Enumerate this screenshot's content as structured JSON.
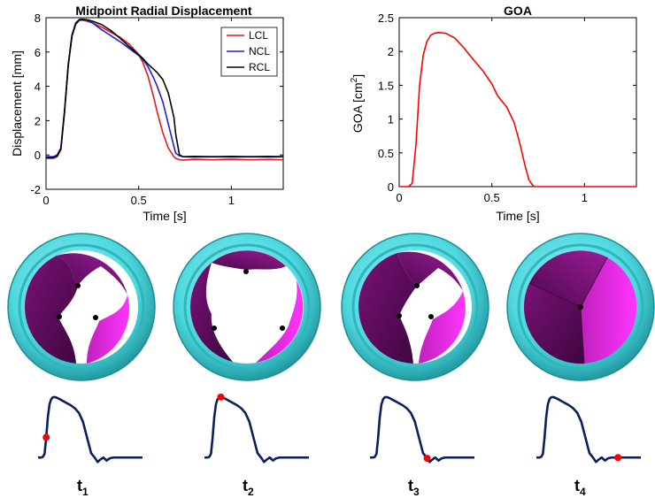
{
  "chart_data": [
    {
      "type": "line",
      "title": "Midpoint Radial Displacement",
      "xlabel": "Time [s]",
      "ylabel": "Displacement [mm]",
      "xlim": [
        0,
        1.28
      ],
      "ylim": [
        -2,
        8
      ],
      "xticks": [
        0,
        0.5,
        1
      ],
      "xtick_labels": [
        "0",
        "0.5",
        "1"
      ],
      "yticks": [
        -2,
        0,
        2,
        4,
        6,
        8
      ],
      "ytick_labels": [
        "-2",
        "0",
        "2",
        "4",
        "6",
        "8"
      ],
      "legend": {
        "placement": "top-right",
        "entries": [
          "LCL",
          "NCL",
          "RCL"
        ]
      },
      "series": [
        {
          "name": "LCL",
          "color": "#e41a1c",
          "x": [
            0,
            0.04,
            0.06,
            0.08,
            0.1,
            0.12,
            0.14,
            0.16,
            0.18,
            0.2,
            0.22,
            0.25,
            0.3,
            0.35,
            0.4,
            0.45,
            0.5,
            0.52,
            0.55,
            0.58,
            0.6,
            0.63,
            0.66,
            0.69,
            0.7,
            0.72,
            0.74,
            0.8,
            0.9,
            1.0,
            1.1,
            1.2,
            1.28
          ],
          "y": [
            -0.2,
            -0.2,
            -0.1,
            0.3,
            2.5,
            5.2,
            6.9,
            7.6,
            7.85,
            7.85,
            7.8,
            7.7,
            7.45,
            7.15,
            6.85,
            6.45,
            5.85,
            5.45,
            4.6,
            3.4,
            2.5,
            1.3,
            0.4,
            -0.1,
            -0.2,
            -0.28,
            -0.3,
            -0.25,
            -0.28,
            -0.25,
            -0.28,
            -0.26,
            -0.28
          ]
        },
        {
          "name": "NCL",
          "color": "#1f1fdc",
          "x": [
            0,
            0.04,
            0.06,
            0.08,
            0.1,
            0.12,
            0.14,
            0.16,
            0.18,
            0.2,
            0.22,
            0.25,
            0.3,
            0.35,
            0.4,
            0.45,
            0.5,
            0.52,
            0.55,
            0.58,
            0.6,
            0.63,
            0.66,
            0.69,
            0.7,
            0.72,
            0.74,
            0.8,
            0.9,
            1.0,
            1.1,
            1.2,
            1.28
          ],
          "y": [
            -0.1,
            -0.1,
            0.0,
            0.4,
            2.6,
            5.3,
            7.0,
            7.7,
            7.9,
            7.9,
            7.85,
            7.7,
            7.3,
            6.95,
            6.6,
            6.2,
            5.8,
            5.6,
            5.15,
            4.5,
            4.0,
            3.1,
            1.8,
            0.5,
            0.1,
            -0.05,
            -0.1,
            -0.12,
            -0.1,
            -0.12,
            -0.1,
            -0.12,
            -0.1
          ]
        },
        {
          "name": "RCL",
          "color": "#000000",
          "x": [
            0,
            0.04,
            0.06,
            0.08,
            0.1,
            0.12,
            0.14,
            0.16,
            0.18,
            0.2,
            0.22,
            0.25,
            0.3,
            0.35,
            0.4,
            0.45,
            0.5,
            0.52,
            0.55,
            0.58,
            0.6,
            0.63,
            0.66,
            0.69,
            0.7,
            0.72,
            0.74,
            0.8,
            0.9,
            1.0,
            1.1,
            1.2,
            1.28
          ],
          "y": [
            -0.15,
            -0.15,
            -0.05,
            0.35,
            2.55,
            5.25,
            6.95,
            7.65,
            7.88,
            7.9,
            7.88,
            7.8,
            7.6,
            7.25,
            6.8,
            6.3,
            5.85,
            5.65,
            5.3,
            5.0,
            4.8,
            4.4,
            3.6,
            2.2,
            1.2,
            0.0,
            -0.1,
            -0.08,
            -0.1,
            -0.08,
            -0.1,
            -0.08,
            -0.1
          ]
        }
      ]
    },
    {
      "type": "line",
      "title": "GOA",
      "xlabel": "Time [s]",
      "ylabel_main": "GOA [cm",
      "ylabel_sup": "2",
      "ylabel_end": "]",
      "xlim": [
        0,
        1.28
      ],
      "ylim": [
        0,
        2.5
      ],
      "xticks": [
        0,
        0.5,
        1
      ],
      "xtick_labels": [
        "0",
        "0.5",
        "1"
      ],
      "yticks": [
        0,
        0.5,
        1,
        1.5,
        2,
        2.5
      ],
      "ytick_labels": [
        "0",
        "0.5",
        "1",
        "1.5",
        "2",
        "2.5"
      ],
      "series": [
        {
          "name": "GOA",
          "color": "#ff0000",
          "x": [
            0,
            0.05,
            0.07,
            0.09,
            0.11,
            0.13,
            0.15,
            0.17,
            0.19,
            0.21,
            0.25,
            0.3,
            0.35,
            0.4,
            0.45,
            0.5,
            0.53,
            0.55,
            0.58,
            0.62,
            0.65,
            0.68,
            0.7,
            0.72,
            0.73,
            0.8,
            0.9,
            1.0,
            1.1,
            1.2,
            1.28
          ],
          "y": [
            0,
            0,
            0.05,
            0.6,
            1.5,
            1.95,
            2.15,
            2.24,
            2.27,
            2.28,
            2.27,
            2.2,
            2.05,
            1.88,
            1.72,
            1.52,
            1.35,
            1.28,
            1.18,
            0.95,
            0.65,
            0.3,
            0.1,
            0.02,
            0,
            0,
            0,
            0,
            0,
            0,
            0
          ]
        }
      ]
    }
  ],
  "valve_colors": {
    "frame": "#4fd8df",
    "frame_dark": "#2aa5ad",
    "leaflet_dark": "#5a0a58",
    "leaflet_mid": "#9a1a92",
    "leaflet_bright": "#ff2cff",
    "marker": "#000000"
  },
  "valves": [
    {
      "name": "valve-t1",
      "state": "open"
    },
    {
      "name": "valve-t2",
      "state": "fully-open"
    },
    {
      "name": "valve-t3",
      "state": "closing"
    },
    {
      "name": "valve-t4",
      "state": "closed"
    }
  ],
  "mini_curve": {
    "color": "#0b1f5c",
    "marker_color": "#ff0000",
    "x": [
      0,
      0.04,
      0.06,
      0.08,
      0.1,
      0.12,
      0.14,
      0.16,
      0.18,
      0.2,
      0.22,
      0.25,
      0.3,
      0.35,
      0.4,
      0.45,
      0.5,
      0.55,
      0.6,
      0.65,
      0.7,
      0.73,
      0.76,
      0.8,
      0.84,
      0.88,
      0.92,
      1.0,
      1.1,
      1.28
    ],
    "y": [
      -0.2,
      -0.2,
      -0.1,
      0.3,
      2.5,
      5.2,
      6.9,
      7.6,
      7.85,
      7.9,
      7.85,
      7.7,
      7.4,
      7.1,
      6.8,
      6.4,
      5.8,
      4.6,
      2.5,
      0.4,
      -0.3,
      -0.8,
      -0.5,
      -0.2,
      -0.6,
      -0.3,
      -0.2,
      -0.2,
      -0.2,
      -0.2
    ],
    "marker_times": [
      0.1,
      0.2,
      0.7,
      1.0
    ]
  },
  "time_labels": [
    {
      "base": "t",
      "sub": "1"
    },
    {
      "base": "t",
      "sub": "2"
    },
    {
      "base": "t",
      "sub": "3"
    },
    {
      "base": "t",
      "sub": "4"
    }
  ]
}
